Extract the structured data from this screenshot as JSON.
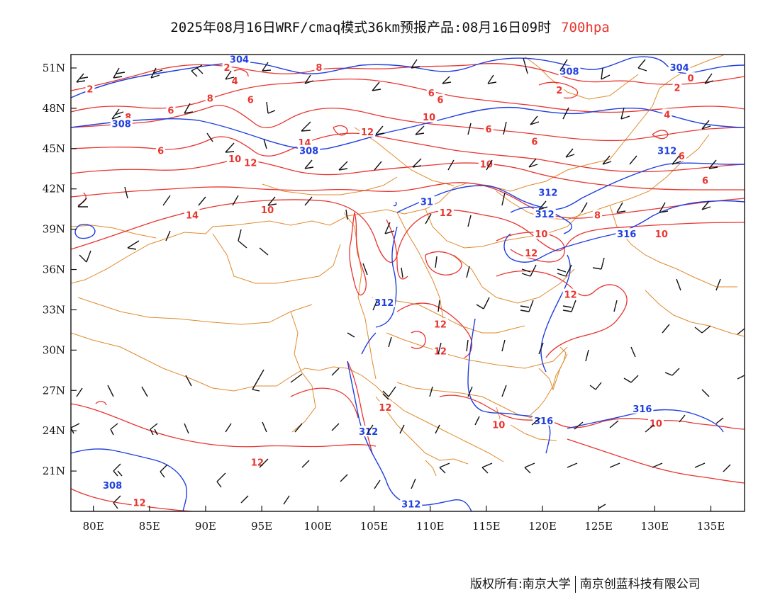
{
  "title": {
    "main": "2025年08月16日WRF/cmaq模式36km预报产品:08月16日09时",
    "level": "700hpa"
  },
  "footer": {
    "left": "版权所有:南京大学",
    "right": "南京创蓝科技有限公司"
  },
  "map": {
    "lon_range": [
      78,
      138
    ],
    "lat_range": [
      18,
      52
    ],
    "lon_ticks": [
      "80E",
      "85E",
      "90E",
      "95E",
      "100E",
      "105E",
      "110E",
      "115E",
      "120E",
      "125E",
      "130E",
      "135E"
    ],
    "lat_ticks": [
      "51N",
      "48N",
      "45N",
      "42N",
      "39N",
      "36N",
      "33N",
      "30N",
      "27N",
      "24N",
      "21N"
    ],
    "colors": {
      "temperature": "#e8352f",
      "height": "#1f3fe0",
      "borders": "#e08a2c",
      "wind": "#111111"
    },
    "temperature_labels": [
      {
        "text": "2",
        "lon": 79.7,
        "lat": 49.4
      },
      {
        "text": "2",
        "lon": 91.9,
        "lat": 51.0
      },
      {
        "text": "4",
        "lon": 92.6,
        "lat": 50.0
      },
      {
        "text": "8",
        "lon": 83.1,
        "lat": 47.3
      },
      {
        "text": "6",
        "lon": 86.9,
        "lat": 47.8
      },
      {
        "text": "8",
        "lon": 90.4,
        "lat": 48.7
      },
      {
        "text": "6",
        "lon": 94.0,
        "lat": 48.6
      },
      {
        "text": "8",
        "lon": 100.1,
        "lat": 51.0
      },
      {
        "text": "6",
        "lon": 110.1,
        "lat": 49.1
      },
      {
        "text": "6",
        "lon": 110.9,
        "lat": 48.6
      },
      {
        "text": "10",
        "lon": 109.9,
        "lat": 47.3
      },
      {
        "text": "12",
        "lon": 104.4,
        "lat": 46.2
      },
      {
        "text": "6",
        "lon": 115.2,
        "lat": 46.4
      },
      {
        "text": "2",
        "lon": 121.5,
        "lat": 49.3
      },
      {
        "text": "6",
        "lon": 119.3,
        "lat": 45.5
      },
      {
        "text": "4",
        "lon": 131.1,
        "lat": 47.5
      },
      {
        "text": "2",
        "lon": 132.0,
        "lat": 49.5
      },
      {
        "text": "0",
        "lon": 133.2,
        "lat": 50.2
      },
      {
        "text": "6",
        "lon": 86.0,
        "lat": 44.8
      },
      {
        "text": "10",
        "lon": 92.6,
        "lat": 44.2
      },
      {
        "text": "12",
        "lon": 94.0,
        "lat": 43.9
      },
      {
        "text": "14",
        "lon": 98.8,
        "lat": 45.4
      },
      {
        "text": "10",
        "lon": 115.0,
        "lat": 43.8
      },
      {
        "text": "6",
        "lon": 132.4,
        "lat": 44.4
      },
      {
        "text": "6",
        "lon": 134.5,
        "lat": 42.6
      },
      {
        "text": "14",
        "lon": 88.8,
        "lat": 40.0
      },
      {
        "text": "10",
        "lon": 95.5,
        "lat": 40.4
      },
      {
        "text": "12",
        "lon": 111.4,
        "lat": 40.2
      },
      {
        "text": "8",
        "lon": 124.9,
        "lat": 40.0
      },
      {
        "text": "10",
        "lon": 130.6,
        "lat": 38.6
      },
      {
        "text": "10",
        "lon": 119.9,
        "lat": 38.6
      },
      {
        "text": "12",
        "lon": 119.0,
        "lat": 37.2
      },
      {
        "text": "12",
        "lon": 122.5,
        "lat": 34.1
      },
      {
        "text": "12",
        "lon": 110.9,
        "lat": 31.9
      },
      {
        "text": "12",
        "lon": 110.9,
        "lat": 29.9
      },
      {
        "text": "12",
        "lon": 106.0,
        "lat": 25.7
      },
      {
        "text": "10",
        "lon": 116.1,
        "lat": 24.4
      },
      {
        "text": "10",
        "lon": 130.1,
        "lat": 24.5
      },
      {
        "text": "12",
        "lon": 94.6,
        "lat": 21.6
      },
      {
        "text": "12",
        "lon": 84.1,
        "lat": 18.6
      }
    ],
    "height_labels": [
      {
        "text": "304",
        "lon": 93.0,
        "lat": 51.6
      },
      {
        "text": "308",
        "lon": 82.5,
        "lat": 46.8
      },
      {
        "text": "308",
        "lon": 99.2,
        "lat": 44.8
      },
      {
        "text": "308",
        "lon": 122.4,
        "lat": 50.7
      },
      {
        "text": "304",
        "lon": 132.2,
        "lat": 51.0
      },
      {
        "text": "312",
        "lon": 131.1,
        "lat": 44.8
      },
      {
        "text": "312",
        "lon": 120.5,
        "lat": 41.7
      },
      {
        "text": "312",
        "lon": 120.2,
        "lat": 40.1
      },
      {
        "text": "31",
        "lon": 109.7,
        "lat": 41.0
      },
      {
        "text": "316",
        "lon": 127.5,
        "lat": 38.6
      },
      {
        "text": "312",
        "lon": 105.9,
        "lat": 33.5
      },
      {
        "text": "316",
        "lon": 120.1,
        "lat": 24.7
      },
      {
        "text": "316",
        "lon": 128.9,
        "lat": 25.6
      },
      {
        "text": "312",
        "lon": 104.5,
        "lat": 23.9
      },
      {
        "text": "308",
        "lon": 81.7,
        "lat": 19.9
      },
      {
        "text": "312",
        "lon": 108.3,
        "lat": 18.5
      }
    ]
  }
}
